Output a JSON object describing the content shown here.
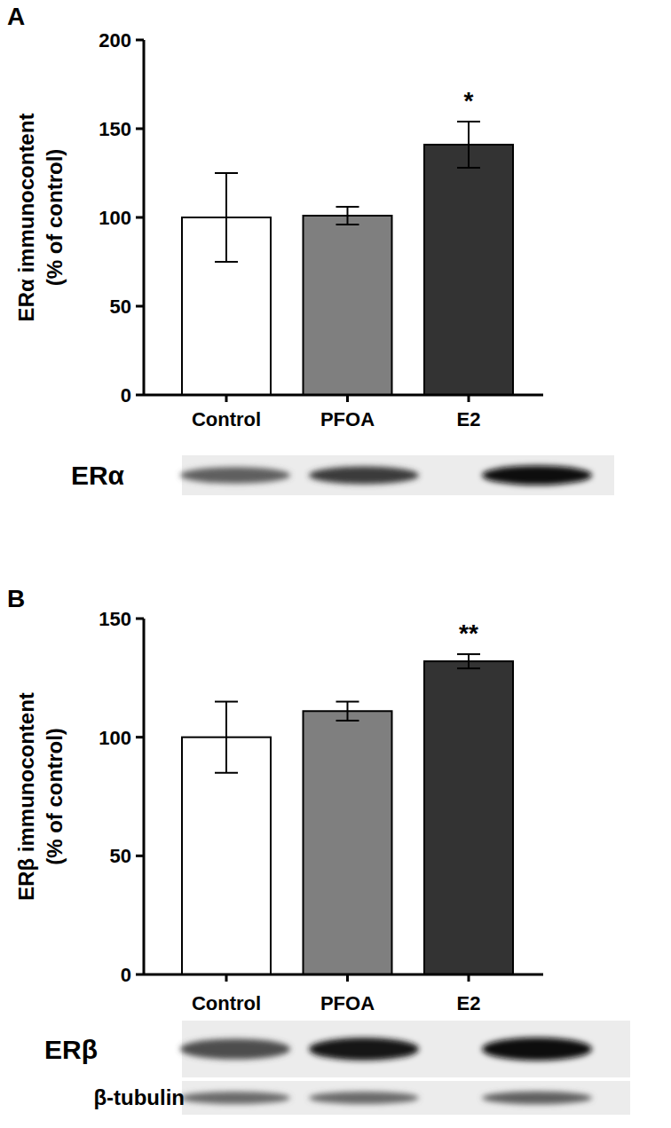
{
  "chart_data": [
    {
      "type": "bar",
      "title": "A",
      "ylabel": [
        "ERα immunocontent",
        "(% of control)"
      ],
      "categories": [
        "Control",
        "PFOA",
        "E2"
      ],
      "values": [
        100,
        101,
        141
      ],
      "errors": [
        25,
        5,
        13
      ],
      "colors": [
        "#ffffff",
        "#7f7f7f",
        "#333333"
      ],
      "ylim": [
        0,
        200
      ],
      "yticks": [
        0,
        50,
        100,
        150,
        200
      ],
      "annotations": [
        {
          "text": "*",
          "category": "E2"
        }
      ],
      "blot_labels": [
        "ERα"
      ]
    },
    {
      "type": "bar",
      "title": "B",
      "ylabel": [
        "ERβ immunocontent",
        "(% of control)"
      ],
      "categories": [
        "Control",
        "PFOA",
        "E2"
      ],
      "values": [
        100,
        111,
        132
      ],
      "errors": [
        15,
        4,
        3
      ],
      "colors": [
        "#ffffff",
        "#7f7f7f",
        "#333333"
      ],
      "ylim": [
        0,
        150
      ],
      "yticks": [
        0,
        50,
        100,
        150
      ],
      "annotations": [
        {
          "text": "**",
          "category": "E2"
        }
      ],
      "blot_labels": [
        "ERβ",
        "β-tubulin"
      ]
    }
  ]
}
